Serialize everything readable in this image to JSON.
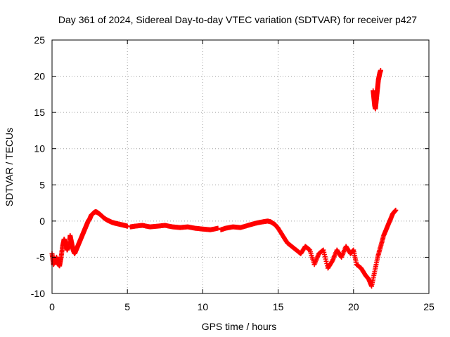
{
  "chart_data": {
    "type": "scatter",
    "title": "Day 361 of 2024, Sidereal Day-to-day VTEC variation (SDTVAR) for receiver p427",
    "xlabel": "GPS time / hours",
    "ylabel": "SDTVAR / TECUs",
    "xlim": [
      0,
      25
    ],
    "ylim": [
      -10,
      25
    ],
    "xticks": [
      0,
      5,
      10,
      15,
      20,
      25
    ],
    "yticks": [
      -10,
      -5,
      0,
      5,
      10,
      15,
      20,
      25
    ],
    "xtick_labels": [
      "0",
      "5",
      "10",
      "15",
      "20",
      "25"
    ],
    "ytick_labels": [
      "-10",
      "-5",
      "0",
      "5",
      "10",
      "15",
      "20",
      "25"
    ],
    "grid": true,
    "marker": "+",
    "color": "#ff0000",
    "series": [
      {
        "name": "segment-1",
        "x": [
          0.0,
          0.1,
          0.2,
          0.3,
          0.4,
          0.5,
          0.6,
          0.7,
          0.8,
          0.9,
          1.0,
          1.1,
          1.2,
          1.3,
          1.4,
          1.5,
          1.6,
          1.7,
          1.8,
          1.9,
          2.0,
          2.1,
          2.2,
          2.3,
          2.4,
          2.5,
          2.6,
          2.7,
          2.8,
          2.9,
          3.0,
          3.2,
          3.4,
          3.6,
          3.8,
          4.0,
          4.2,
          4.4,
          4.6,
          4.8,
          5.0
        ],
        "y": [
          -4.5,
          -6.0,
          -5.5,
          -5.0,
          -5.8,
          -6.2,
          -5.0,
          -3.5,
          -2.5,
          -3.0,
          -4.0,
          -3.5,
          -2.0,
          -3.0,
          -4.0,
          -4.5,
          -4.0,
          -3.5,
          -3.0,
          -2.5,
          -2.0,
          -1.5,
          -1.0,
          -0.5,
          0.0,
          0.3,
          0.8,
          1.0,
          1.2,
          1.3,
          1.2,
          0.9,
          0.5,
          0.2,
          0.0,
          -0.2,
          -0.3,
          -0.4,
          -0.5,
          -0.6,
          -0.7
        ]
      },
      {
        "name": "segment-2",
        "x": [
          5.2,
          5.5,
          6.0,
          6.5,
          7.0,
          7.5,
          8.0,
          8.5,
          9.0,
          9.5,
          10.0,
          10.5,
          11.0
        ],
        "y": [
          -0.8,
          -0.7,
          -0.6,
          -0.8,
          -0.7,
          -0.6,
          -0.8,
          -0.9,
          -0.8,
          -1.0,
          -1.1,
          -1.2,
          -1.0
        ]
      },
      {
        "name": "segment-3",
        "x": [
          11.2,
          11.5,
          12.0,
          12.5,
          13.0,
          13.5,
          14.0,
          14.3,
          14.5,
          14.8,
          15.0,
          15.3,
          15.6,
          15.9,
          16.2,
          16.5,
          16.8,
          17.1,
          17.4,
          17.7,
          18.0,
          18.3,
          18.6,
          18.9,
          19.2,
          19.5,
          19.8,
          20.0,
          20.2,
          20.5,
          20.8,
          21.0,
          21.2,
          21.4,
          21.6,
          21.8,
          22.0,
          22.2,
          22.4,
          22.6,
          22.8
        ],
        "y": [
          -1.2,
          -1.0,
          -0.8,
          -0.9,
          -0.6,
          -0.3,
          -0.1,
          0.0,
          -0.1,
          -0.5,
          -1.0,
          -2.0,
          -3.0,
          -3.5,
          -4.0,
          -4.5,
          -3.5,
          -4.0,
          -6.0,
          -4.5,
          -4.0,
          -6.5,
          -5.5,
          -4.0,
          -5.0,
          -3.5,
          -4.5,
          -4.0,
          -6.0,
          -6.5,
          -7.5,
          -8.0,
          -9.0,
          -7.0,
          -5.0,
          -3.5,
          -2.0,
          -1.0,
          0.0,
          1.0,
          1.5
        ]
      },
      {
        "name": "segment-4",
        "x": [
          21.3,
          21.35,
          21.4,
          21.45,
          21.5,
          21.55,
          21.6,
          21.65,
          21.7,
          21.75,
          21.8
        ],
        "y": [
          18.0,
          17.0,
          16.0,
          15.5,
          16.5,
          17.5,
          18.5,
          19.5,
          20.0,
          20.5,
          20.8
        ]
      }
    ]
  }
}
